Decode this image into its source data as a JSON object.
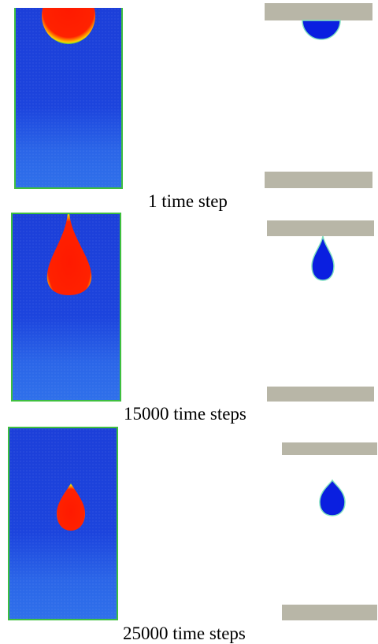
{
  "frames": [
    {
      "caption": "1 time step"
    },
    {
      "caption": "15000 time steps"
    },
    {
      "caption": "25000 time steps"
    }
  ],
  "colors": {
    "background": "#ffffff",
    "field_blue": "#1c3fd9",
    "droplet_red": "#ff1a00",
    "interface_green": "#3fbf3f",
    "drop_blue": "#0a1fe0",
    "plate_gray": "#b8b6a7"
  }
}
